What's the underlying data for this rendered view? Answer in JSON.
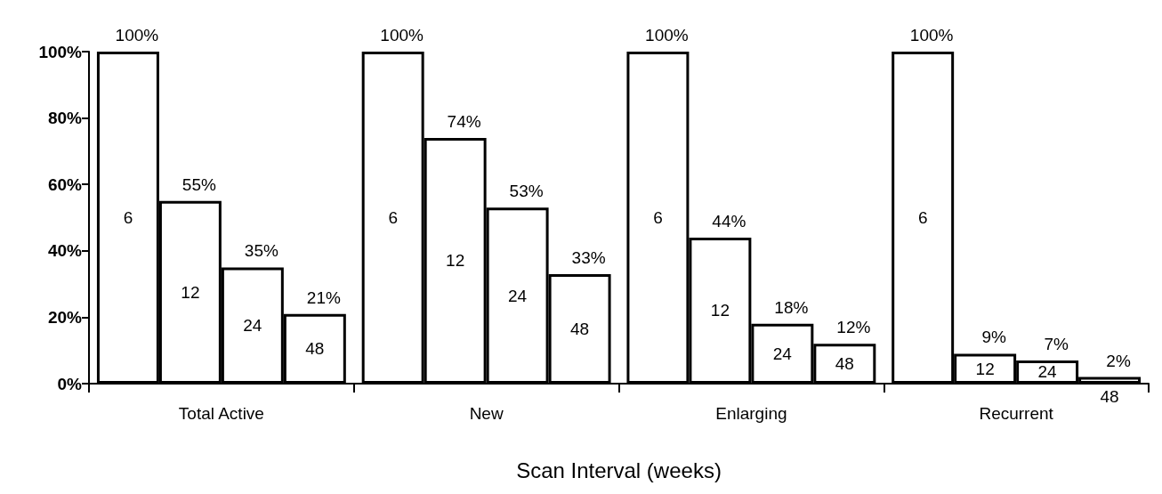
{
  "chart_data": {
    "type": "bar",
    "xlabel": "Scan Interval (weeks)",
    "categories": [
      "Total Active",
      "New",
      "Enlarging",
      "Recurrent"
    ],
    "series": [
      {
        "name": "6",
        "color": "#ffffff",
        "values": [
          100,
          100,
          100,
          100
        ],
        "value_labels": [
          "100%",
          "100%",
          "100%",
          "100%"
        ]
      },
      {
        "name": "12",
        "color": "#ffffff",
        "values": [
          55,
          74,
          44,
          9
        ],
        "value_labels": [
          "55%",
          "74%",
          "44%",
          "9%"
        ]
      },
      {
        "name": "24",
        "color": "#ffffff",
        "values": [
          35,
          53,
          18,
          7
        ],
        "value_labels": [
          "35%",
          "53%",
          "18%",
          "7%"
        ]
      },
      {
        "name": "48",
        "color": "#ffffff",
        "values": [
          21,
          33,
          12,
          2
        ],
        "value_labels": [
          "21%",
          "33%",
          "12%",
          "2%"
        ]
      }
    ],
    "ylim": [
      0,
      100
    ],
    "yticks": [
      {
        "value": 0,
        "label": "0%"
      },
      {
        "value": 20,
        "label": "20%"
      },
      {
        "value": 40,
        "label": "40%"
      },
      {
        "value": 60,
        "label": "60%"
      },
      {
        "value": 80,
        "label": "80%"
      },
      {
        "value": 100,
        "label": "100%"
      }
    ],
    "grid": false,
    "legend": false
  }
}
